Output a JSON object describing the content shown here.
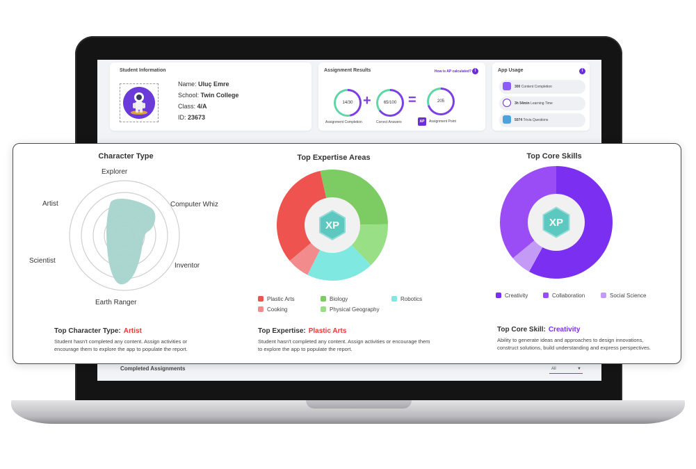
{
  "student_info": {
    "title": "Student Information",
    "name_label": "Name:",
    "name": "Uluç Emre",
    "school_label": "School:",
    "school": "Twin College",
    "class_label": "Class:",
    "class": "4/A",
    "id_label": "ID:",
    "id": "23673"
  },
  "assignment_results": {
    "title": "Assignment Results",
    "ap_link": "How is AP calculated?",
    "completion": {
      "value": "14/30",
      "label": "Assignment Completion",
      "fraction": 0.47
    },
    "correct": {
      "value": "65/100",
      "label": "Correct Answers",
      "fraction": 0.65
    },
    "points": {
      "value": "205",
      "label": "Assignment Point",
      "badge": "AP"
    }
  },
  "app_usage": {
    "title": "App Usage",
    "items": [
      {
        "value": "300",
        "label": "Content Completion",
        "icon": "stack-icon"
      },
      {
        "value": "3h 54min",
        "label": "Learning Time",
        "icon": "clock-icon"
      },
      {
        "value": "5074",
        "label": "Trivia Questions",
        "icon": "question-icon"
      }
    ]
  },
  "completed_assignments": {
    "title": "Completed Assignments",
    "filter": "All"
  },
  "character_type": {
    "title": "Character Type",
    "axes": [
      "Explorer",
      "Computer Whiz",
      "Inventor",
      "Earth Ranger",
      "Scientist",
      "Artist"
    ],
    "summary_label": "Top Character Type:",
    "summary_value": "Artist",
    "summary_text": "Student hasn't completed any content. Assign activities or encourage them to explore the app to populate the report."
  },
  "top_expertise": {
    "title": "Top Expertise Areas",
    "center_badge": "XP",
    "segments": [
      {
        "name": "Plastic Arts",
        "value": 30,
        "color": "#ef5350"
      },
      {
        "name": "Biology",
        "value": 26,
        "color": "#7ccc63"
      },
      {
        "name": "Physical Geography",
        "value": 12,
        "color": "#98df86"
      },
      {
        "name": "Robotics",
        "value": 18,
        "color": "#7fe8e0"
      },
      {
        "name": "Cooking",
        "value": 6,
        "color": "#f28c8c"
      }
    ],
    "legend_order": [
      "Plastic Arts",
      "Biology",
      "Robotics",
      "Cooking",
      "Physical Geography"
    ],
    "summary_label": "Top Expertise:",
    "summary_value": "Plastic Arts",
    "summary_text": "Student hasn't completed any content. Assign activities or encourage them to explore the app to populate the report."
  },
  "top_core_skills": {
    "title": "Top Core Skills",
    "center_badge": "XP",
    "segments": [
      {
        "name": "Creativity",
        "value": 58,
        "color": "#7b2ff0"
      },
      {
        "name": "Social Science",
        "value": 6,
        "color": "#c39bf7"
      },
      {
        "name": "Collaboration",
        "value": 36,
        "color": "#9b4df5"
      }
    ],
    "legend_order": [
      "Creativity",
      "Collaboration",
      "Social Science"
    ],
    "summary_label": "Top Core Skill:",
    "summary_value": "Creativity",
    "summary_text": "Ability to generate ideas and approaches to design innovations, construct solutions, build understanding and express perspectives."
  },
  "colors": {
    "accent": "#6b2fd4",
    "highlight_red": "#e53935",
    "highlight_purple": "#7b2ff0",
    "radar_fill": "#a6d3cc"
  }
}
